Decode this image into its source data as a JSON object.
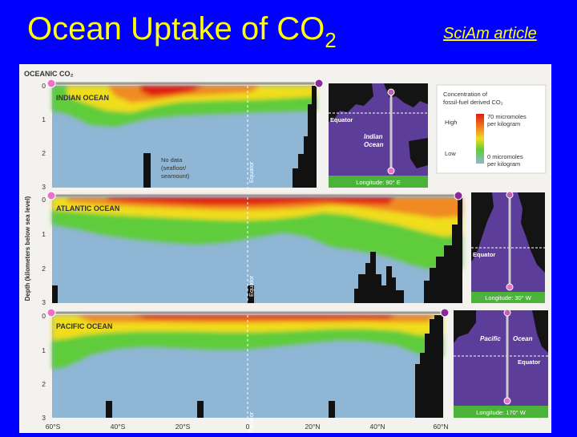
{
  "slide": {
    "title_main": "Ocean Uptake of CO",
    "title_sub": "2",
    "link_text": "SciAm article"
  },
  "figure": {
    "heading": "OCEANIC CO₂",
    "y_axis_label": "Depth (kilometers below sea level)",
    "depth_ticks": [
      "0",
      "1",
      "2",
      "3"
    ],
    "lat_ticks": [
      "60°S",
      "40°S",
      "20°S",
      "0",
      "20°N",
      "40°N",
      "60°N"
    ],
    "equator_label": "Equator",
    "no_data_label": [
      "No data",
      "(seafloor/",
      "seamount)"
    ],
    "panels": [
      {
        "name": "INDIAN OCEAN",
        "map_label": [
          "Indian",
          "Ocean"
        ],
        "longitude": "Longitude: 90° E"
      },
      {
        "name": "ATLANTIC OCEAN",
        "map_label": [],
        "longitude": "Longitude: 30° W"
      },
      {
        "name": "PACIFIC OCEAN",
        "map_label": [
          "Pacific",
          "Ocean"
        ],
        "longitude": "Longitude: 170° W"
      }
    ],
    "legend": {
      "title": [
        "Concentration of",
        "fossil-fuel derived CO₂"
      ],
      "high_label": "High",
      "low_label": "Low",
      "high_value": [
        "70 micromoles",
        "per kilogram"
      ],
      "low_value": [
        "0 micromoles",
        "per kilogram"
      ]
    },
    "colors": {
      "background": "#f4f2ee",
      "deep_water": "#8fb6d4",
      "green": "#5fcc3a",
      "yellow": "#f0dd1e",
      "orange": "#f08a22",
      "red": "#e01e10",
      "map_ocean": "#5c3d9a",
      "map_land": "#141414",
      "caption_bar": "#4bb33a"
    }
  }
}
